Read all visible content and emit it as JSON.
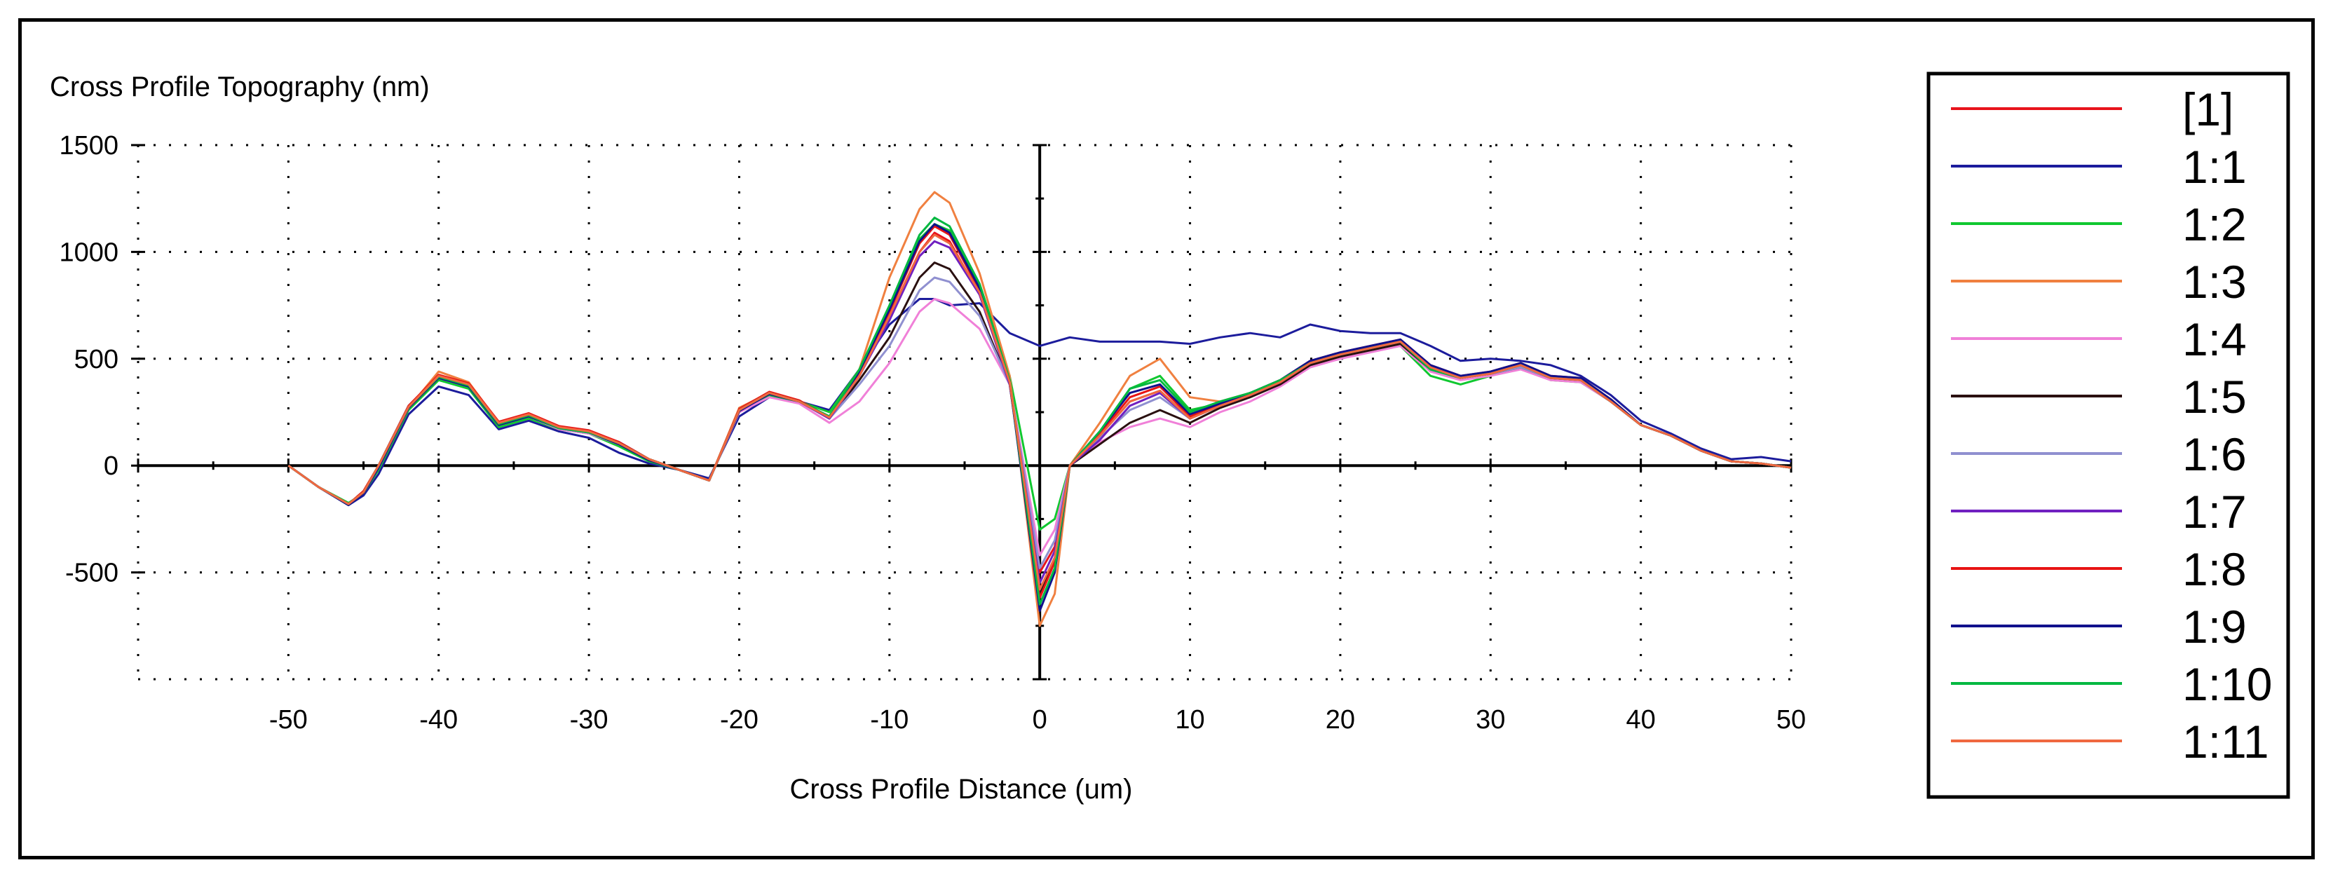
{
  "chart_data": {
    "type": "line",
    "title": "Cross Profile Topography (nm)",
    "xlabel": "Cross Profile Distance (um)",
    "ylabel": "Cross Profile Topography (nm)",
    "xlim": [
      -60,
      50
    ],
    "ylim": [
      -1000,
      1500
    ],
    "xticks": [
      -50,
      -40,
      -30,
      -20,
      -10,
      0,
      10,
      20,
      30,
      40,
      50
    ],
    "yticks": [
      1500,
      1000,
      500,
      0,
      -500
    ],
    "grid": true,
    "legend_position": "right",
    "x": [
      -50,
      -48,
      -46,
      -45,
      -44,
      -42,
      -40,
      -38,
      -36,
      -34,
      -32,
      -30,
      -28,
      -26,
      -24,
      -22,
      -20,
      -18,
      -16,
      -14,
      -12,
      -10,
      -8,
      -7,
      -6,
      -4,
      -2,
      0,
      1,
      2,
      4,
      6,
      8,
      10,
      12,
      14,
      16,
      18,
      20,
      22,
      24,
      26,
      28,
      30,
      32,
      34,
      36,
      38,
      40,
      42,
      44,
      46,
      48,
      50
    ],
    "series": [
      {
        "name": "[1]",
        "color": "#e8141c",
        "values": [
          0,
          -100,
          -180,
          -120,
          0,
          280,
          420,
          380,
          200,
          240,
          180,
          160,
          110,
          30,
          -20,
          -70,
          260,
          340,
          300,
          220,
          420,
          700,
          1000,
          1090,
          1050,
          800,
          380,
          -500,
          -380,
          0,
          140,
          300,
          350,
          220,
          280,
          330,
          390,
          480,
          520,
          550,
          580,
          460,
          410,
          430,
          470,
          410,
          400,
          300,
          190,
          140,
          70,
          20,
          10,
          -10
        ]
      },
      {
        "name": "1:1",
        "color": "#1c1c9c",
        "values": [
          0,
          -100,
          -185,
          -140,
          -40,
          240,
          370,
          330,
          170,
          210,
          160,
          130,
          60,
          10,
          -20,
          -60,
          230,
          320,
          300,
          260,
          450,
          660,
          780,
          780,
          750,
          760,
          620,
          560,
          580,
          600,
          580,
          580,
          580,
          570,
          600,
          620,
          600,
          660,
          630,
          620,
          620,
          560,
          490,
          500,
          490,
          470,
          420,
          330,
          210,
          150,
          80,
          30,
          40,
          20
        ]
      },
      {
        "name": "1:2",
        "color": "#10c830",
        "values": [
          0,
          -100,
          -175,
          -130,
          -20,
          260,
          400,
          360,
          180,
          220,
          170,
          150,
          90,
          20,
          -20,
          -70,
          250,
          330,
          300,
          250,
          450,
          740,
          1060,
          1130,
          1100,
          850,
          420,
          -300,
          -250,
          0,
          150,
          360,
          420,
          260,
          290,
          340,
          390,
          470,
          520,
          540,
          560,
          420,
          380,
          420,
          460,
          400,
          390,
          300,
          190,
          140,
          70,
          20,
          10,
          -10
        ]
      },
      {
        "name": "1:3",
        "color": "#f08040",
        "values": [
          0,
          -100,
          -180,
          -125,
          -10,
          270,
          440,
          390,
          200,
          240,
          180,
          160,
          100,
          30,
          -20,
          -70,
          270,
          340,
          300,
          230,
          450,
          880,
          1200,
          1280,
          1230,
          900,
          420,
          -750,
          -600,
          0,
          200,
          420,
          500,
          320,
          300,
          340,
          390,
          480,
          520,
          550,
          580,
          450,
          410,
          430,
          460,
          410,
          400,
          300,
          190,
          140,
          70,
          20,
          10,
          -10
        ]
      },
      {
        "name": "1:4",
        "color": "#f080d8",
        "values": [
          0,
          -100,
          -180,
          -130,
          -10,
          270,
          410,
          370,
          190,
          230,
          170,
          150,
          100,
          30,
          -20,
          -70,
          250,
          320,
          290,
          200,
          300,
          480,
          720,
          780,
          760,
          640,
          380,
          -420,
          -300,
          0,
          110,
          180,
          220,
          180,
          250,
          300,
          370,
          460,
          500,
          530,
          560,
          440,
          400,
          420,
          450,
          400,
          390,
          300,
          190,
          140,
          70,
          20,
          10,
          -10
        ]
      },
      {
        "name": "1:5",
        "color": "#2a1010",
        "values": [
          0,
          -100,
          -180,
          -125,
          0,
          280,
          420,
          380,
          200,
          240,
          180,
          160,
          110,
          30,
          -20,
          -70,
          260,
          340,
          300,
          220,
          400,
          600,
          880,
          950,
          920,
          720,
          380,
          -600,
          -450,
          0,
          100,
          200,
          260,
          200,
          270,
          320,
          380,
          470,
          510,
          540,
          570,
          450,
          410,
          430,
          460,
          410,
          400,
          300,
          190,
          140,
          70,
          20,
          10,
          -10
        ]
      },
      {
        "name": "1:6",
        "color": "#9090d0",
        "values": [
          0,
          -100,
          -180,
          -125,
          0,
          280,
          420,
          380,
          200,
          240,
          180,
          160,
          110,
          30,
          -20,
          -70,
          260,
          340,
          300,
          220,
          380,
          560,
          820,
          880,
          860,
          700,
          380,
          -480,
          -350,
          0,
          130,
          260,
          320,
          220,
          280,
          330,
          390,
          480,
          520,
          550,
          580,
          450,
          410,
          430,
          460,
          410,
          400,
          300,
          190,
          140,
          70,
          20,
          10,
          -10
        ]
      },
      {
        "name": "1:7",
        "color": "#7020c0",
        "values": [
          0,
          -100,
          -180,
          -125,
          0,
          280,
          420,
          380,
          200,
          240,
          180,
          160,
          110,
          30,
          -20,
          -70,
          260,
          340,
          300,
          220,
          420,
          680,
          980,
          1050,
          1020,
          800,
          380,
          -550,
          -400,
          0,
          120,
          280,
          340,
          220,
          280,
          330,
          390,
          480,
          520,
          550,
          580,
          460,
          410,
          430,
          470,
          410,
          400,
          300,
          190,
          140,
          70,
          20,
          10,
          -10
        ]
      },
      {
        "name": "1:8",
        "color": "#e81414",
        "values": [
          0,
          -100,
          -180,
          -120,
          0,
          280,
          425,
          385,
          205,
          245,
          185,
          165,
          110,
          30,
          -20,
          -70,
          265,
          345,
          305,
          225,
          430,
          720,
          1040,
          1120,
          1080,
          820,
          390,
          -620,
          -450,
          0,
          150,
          320,
          370,
          230,
          290,
          340,
          400,
          490,
          530,
          560,
          590,
          470,
          420,
          440,
          480,
          420,
          410,
          310,
          190,
          140,
          70,
          20,
          10,
          -10
        ]
      },
      {
        "name": "1:9",
        "color": "#10108c",
        "values": [
          0,
          -100,
          -185,
          -130,
          -10,
          270,
          410,
          370,
          190,
          230,
          175,
          155,
          100,
          25,
          -20,
          -70,
          255,
          335,
          300,
          230,
          440,
          730,
          1050,
          1130,
          1090,
          830,
          390,
          -680,
          -500,
          0,
          160,
          340,
          380,
          240,
          290,
          340,
          400,
          490,
          530,
          560,
          590,
          470,
          420,
          440,
          480,
          420,
          410,
          310,
          190,
          140,
          70,
          20,
          10,
          -10
        ]
      },
      {
        "name": "1:10",
        "color": "#00b840",
        "values": [
          0,
          -100,
          -180,
          -125,
          0,
          275,
          415,
          375,
          195,
          235,
          175,
          155,
          105,
          30,
          -20,
          -70,
          260,
          340,
          300,
          230,
          450,
          750,
          1080,
          1160,
          1120,
          850,
          400,
          -650,
          -480,
          0,
          160,
          360,
          400,
          250,
          300,
          340,
          400,
          480,
          520,
          550,
          580,
          450,
          410,
          430,
          470,
          410,
          400,
          300,
          190,
          140,
          70,
          20,
          10,
          -10
        ]
      },
      {
        "name": "1:11",
        "color": "#f06840",
        "values": [
          0,
          -100,
          -180,
          -125,
          0,
          275,
          420,
          380,
          200,
          240,
          180,
          160,
          105,
          30,
          -20,
          -70,
          260,
          340,
          300,
          225,
          420,
          700,
          1000,
          1080,
          1040,
          810,
          390,
          -580,
          -430,
          0,
          140,
          300,
          350,
          220,
          280,
          330,
          390,
          480,
          520,
          550,
          580,
          460,
          410,
          430,
          470,
          410,
          400,
          300,
          190,
          140,
          70,
          20,
          10,
          -10
        ]
      }
    ]
  }
}
